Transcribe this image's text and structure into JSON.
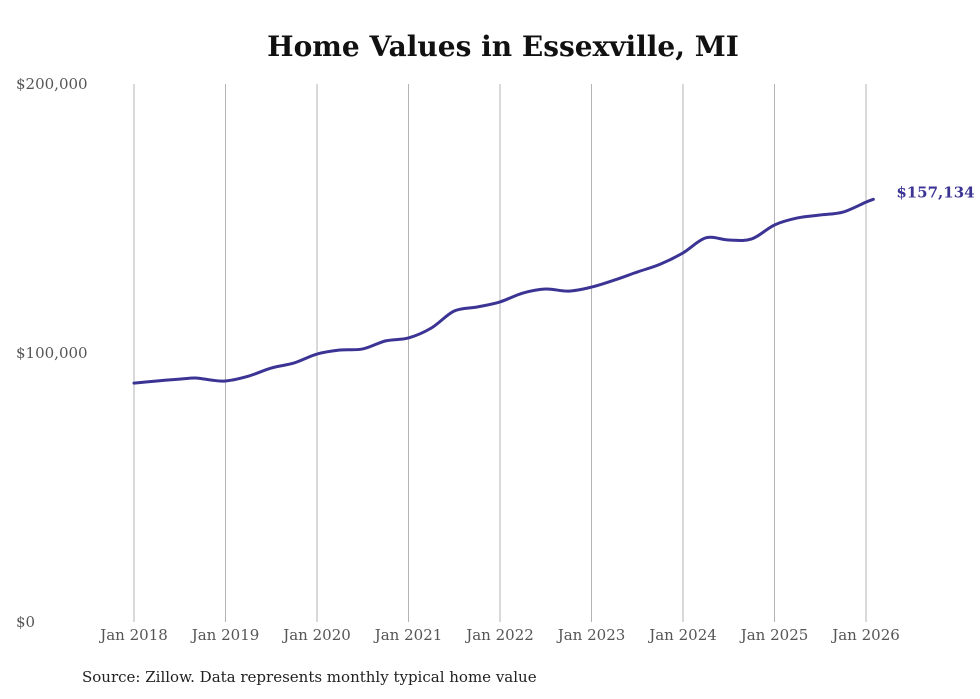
{
  "chart_data": {
    "type": "line",
    "title": "Home Values in Essexville, MI",
    "source": "Source: Zillow. Data represents monthly typical home value",
    "xlabel": "",
    "ylabel": "",
    "ylim": [
      0,
      200000
    ],
    "xlim": [
      2018.0,
      2026.1
    ],
    "y_ticks": [
      {
        "value": 0,
        "label": "$0"
      },
      {
        "value": 100000,
        "label": "$100,000"
      },
      {
        "value": 200000,
        "label": "$200,000"
      }
    ],
    "x_ticks": [
      {
        "value": 2018,
        "label": "Jan 2018"
      },
      {
        "value": 2019,
        "label": "Jan 2019"
      },
      {
        "value": 2020,
        "label": "Jan 2020"
      },
      {
        "value": 2021,
        "label": "Jan 2021"
      },
      {
        "value": 2022,
        "label": "Jan 2022"
      },
      {
        "value": 2023,
        "label": "Jan 2023"
      },
      {
        "value": 2024,
        "label": "Jan 2024"
      },
      {
        "value": 2025,
        "label": "Jan 2025"
      },
      {
        "value": 2026,
        "label": "Jan 2026"
      }
    ],
    "grid": "vertical",
    "line_color": "#3b3494",
    "end_label": "$157,134",
    "series": [
      {
        "name": "Typical home value",
        "x": [
          2018.0,
          2018.25,
          2018.5,
          2018.67,
          2018.83,
          2019.0,
          2019.25,
          2019.5,
          2019.75,
          2020.0,
          2020.25,
          2020.5,
          2020.75,
          2021.0,
          2021.25,
          2021.5,
          2021.75,
          2022.0,
          2022.25,
          2022.5,
          2022.75,
          2023.0,
          2023.25,
          2023.5,
          2023.75,
          2024.0,
          2024.25,
          2024.5,
          2024.75,
          2025.0,
          2025.25,
          2025.5,
          2025.75,
          2026.0,
          2026.08
        ],
        "y": [
          88800,
          89600,
          90300,
          90700,
          90000,
          89600,
          91400,
          94400,
          96300,
          99600,
          101100,
          101500,
          104500,
          105600,
          109300,
          115600,
          117100,
          119000,
          122300,
          123800,
          123000,
          124500,
          127100,
          130100,
          133000,
          137200,
          142800,
          142000,
          142400,
          147600,
          150200,
          151300,
          152400,
          156100,
          157134
        ]
      }
    ]
  }
}
